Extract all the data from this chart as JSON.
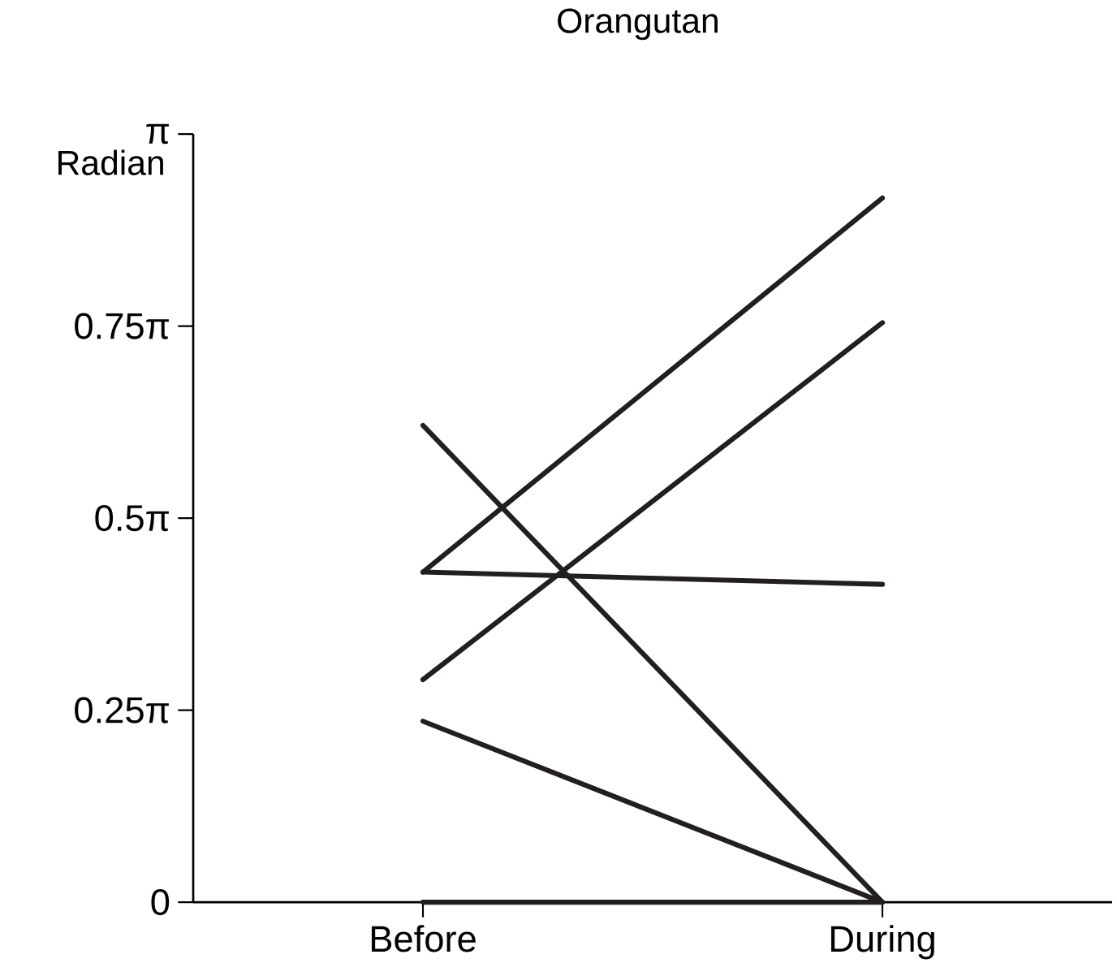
{
  "chart_data": {
    "type": "line",
    "title": "Orangutan",
    "ylabel": "Radian",
    "categories": [
      "Before",
      "During"
    ],
    "series": [
      {
        "color": "#231f20",
        "values": [
          1.35,
          2.88
        ]
      },
      {
        "color": "#231f20",
        "values": [
          0.91,
          2.37
        ]
      },
      {
        "color": "#231f20",
        "values": [
          1.35,
          1.3
        ]
      },
      {
        "color": "#231f20",
        "values": [
          1.95,
          0
        ]
      },
      {
        "color": "#231f20",
        "values": [
          0.74,
          0
        ]
      },
      {
        "color": "#231f20",
        "values": [
          0,
          0
        ]
      }
    ],
    "ylim": [
      0,
      3.1416
    ],
    "yticks": [
      {
        "value": 0,
        "label": "0"
      },
      {
        "value": 0.7854,
        "label": "0.25π"
      },
      {
        "value": 1.5708,
        "label": "0.5π"
      },
      {
        "value": 2.3562,
        "label": "0.75π"
      },
      {
        "value": 3.1416,
        "label": "π"
      }
    ],
    "marker": "none",
    "line_style": "solid"
  }
}
